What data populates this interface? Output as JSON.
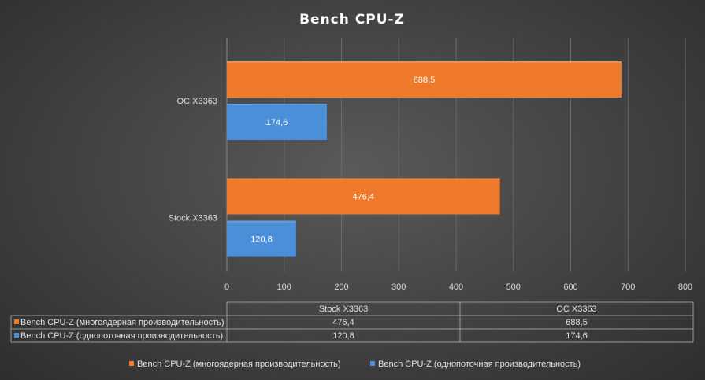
{
  "chart_data": {
    "type": "bar",
    "orientation": "horizontal",
    "title": "Bench  CPU-Z",
    "categories": [
      "OC X3363",
      "Stock X3363"
    ],
    "series": [
      {
        "name": "Bench CPU-Z (многоядерная производительность)",
        "color": "#f07a2c",
        "values": [
          688.5,
          476.4
        ]
      },
      {
        "name": "Bench CPU-Z (однопоточная производительность)",
        "color": "#4a8fd8",
        "values": [
          174.6,
          120.8
        ]
      }
    ],
    "xlim": [
      0,
      800
    ],
    "xticks": [
      0,
      100,
      200,
      300,
      400,
      500,
      600,
      700,
      800
    ],
    "grid": true,
    "legend": "bottom",
    "data_table": {
      "columns": [
        "Stock X3363",
        "OC X3363"
      ],
      "rows": [
        {
          "label": "Bench CPU-Z (многоядерная производительность)",
          "values": [
            "476,4",
            "688,5"
          ]
        },
        {
          "label": "Bench CPU-Z (однопоточная производительность)",
          "values": [
            "120,8",
            "174,6"
          ]
        }
      ]
    }
  }
}
